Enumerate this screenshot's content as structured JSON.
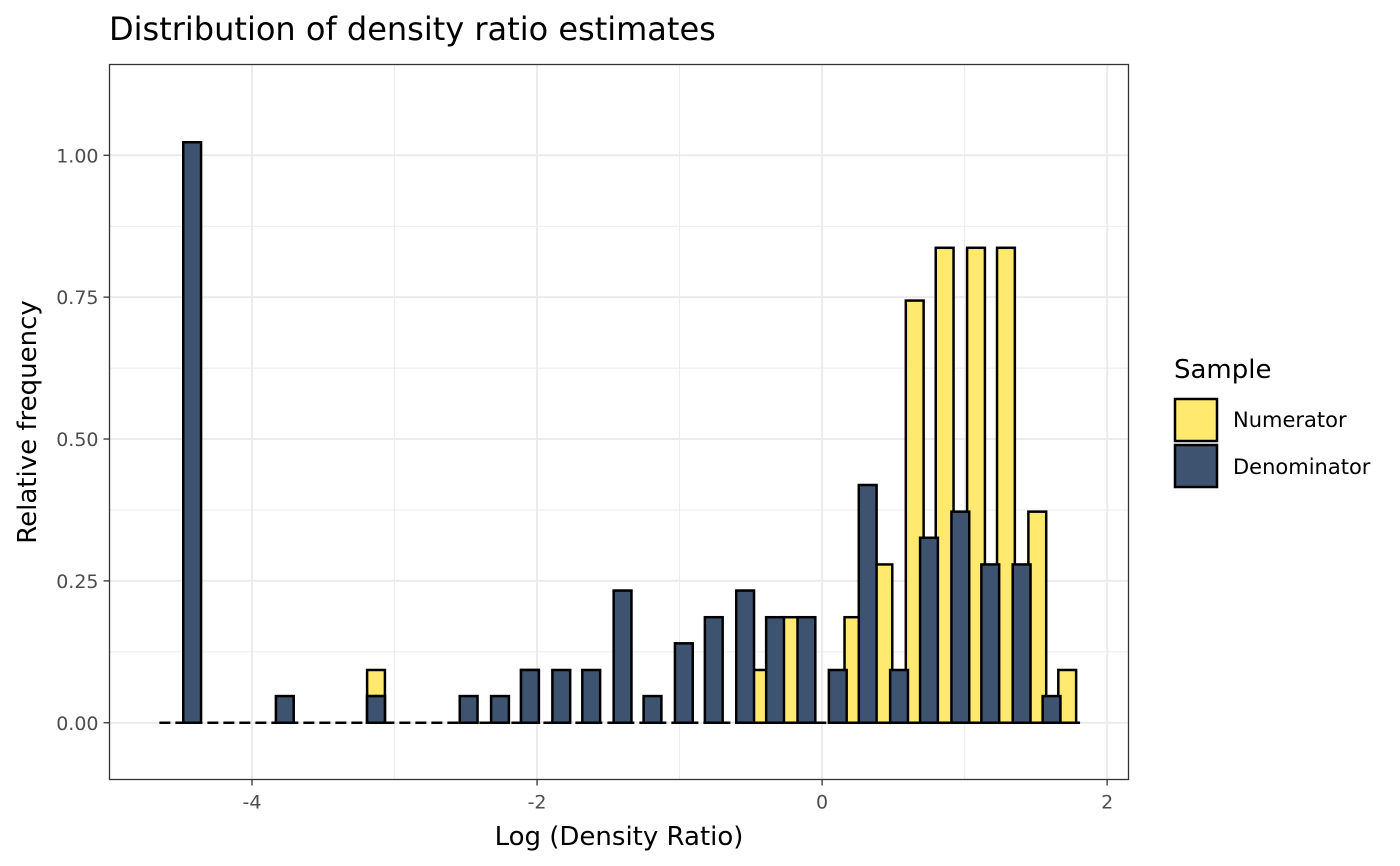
{
  "chart_data": {
    "type": "bar",
    "title": "Distribution of density ratio estimates",
    "xlabel": "Log (Density Ratio)",
    "ylabel": "Relative frequency",
    "xlim": [
      -5.0,
      2.15
    ],
    "ylim": [
      -0.1,
      1.16
    ],
    "x_ticks": [
      -4,
      -2,
      0,
      2
    ],
    "x_tick_labels": [
      "-4",
      "-2",
      "0",
      "2"
    ],
    "y_ticks": [
      0,
      0.25,
      0.5,
      0.75,
      1.0
    ],
    "y_tick_labels": [
      "0.00",
      "0.25",
      "0.50",
      "0.75",
      "1.00"
    ],
    "grid": true,
    "legend": {
      "title": "Sample",
      "position": "right"
    },
    "baseline": {
      "style": "dashed",
      "y": 0,
      "x_range": [
        -4.65,
        1.81
      ]
    },
    "bin_width": 0.2155,
    "series": [
      {
        "name": "Numerator",
        "color": "#FFEA6F",
        "bins": [
          {
            "x": -3.13,
            "y": 0.093
          },
          {
            "x": -2.05,
            "y": 0.093
          },
          {
            "x": -0.43,
            "y": 0.093
          },
          {
            "x": -0.22,
            "y": 0.186
          },
          {
            "x": 0.22,
            "y": 0.186
          },
          {
            "x": 0.43,
            "y": 0.279
          },
          {
            "x": 0.65,
            "y": 0.744
          },
          {
            "x": 0.86,
            "y": 0.837
          },
          {
            "x": 1.08,
            "y": 0.837
          },
          {
            "x": 1.29,
            "y": 0.837
          },
          {
            "x": 1.51,
            "y": 0.372
          },
          {
            "x": 1.72,
            "y": 0.093
          }
        ]
      },
      {
        "name": "Denominator",
        "color": "#3D5370",
        "bins": [
          {
            "x": -4.42,
            "y": 1.023
          },
          {
            "x": -3.77,
            "y": 0.047
          },
          {
            "x": -3.13,
            "y": 0.047
          },
          {
            "x": -3.13,
            "y": 0.047
          },
          {
            "x": -2.48,
            "y": 0.047
          },
          {
            "x": -2.26,
            "y": 0.047
          },
          {
            "x": -2.05,
            "y": 0.093
          },
          {
            "x": -1.83,
            "y": 0.093
          },
          {
            "x": -1.62,
            "y": 0.093
          },
          {
            "x": -1.4,
            "y": 0.233
          },
          {
            "x": -1.19,
            "y": 0.047
          },
          {
            "x": -0.97,
            "y": 0.14
          },
          {
            "x": -0.76,
            "y": 0.186
          },
          {
            "x": -0.54,
            "y": 0.233
          },
          {
            "x": -0.33,
            "y": 0.186
          },
          {
            "x": -0.11,
            "y": 0.186
          },
          {
            "x": 0.11,
            "y": 0.093
          },
          {
            "x": 0.32,
            "y": 0.419
          },
          {
            "x": 0.54,
            "y": 0.093
          },
          {
            "x": 0.75,
            "y": 0.326
          },
          {
            "x": 0.97,
            "y": 0.372
          },
          {
            "x": 1.18,
            "y": 0.279
          },
          {
            "x": 1.4,
            "y": 0.279
          },
          {
            "x": 1.61,
            "y": 0.047
          }
        ]
      }
    ]
  }
}
